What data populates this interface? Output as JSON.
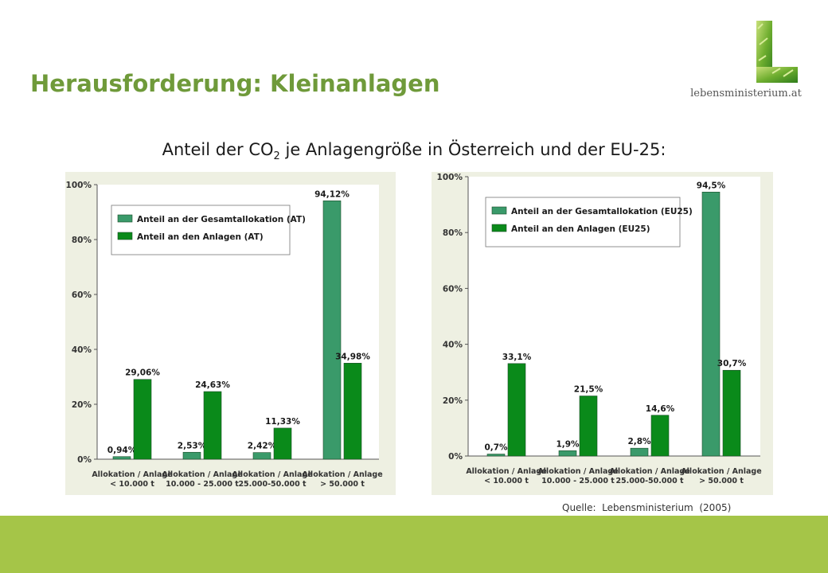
{
  "slide": {
    "title": "Herausforderung: Kleinanlagen",
    "subtitle_part1": "Anteil der CO",
    "subtitle_sub": "2",
    "subtitle_part2": " je Anlagengröße in Österreich und der EU-25:",
    "source": "Quelle:  Lebensministerium  (2005)",
    "logo_text": "lebensministerium.at",
    "colors": {
      "title_green": "#6f9a3a",
      "footer_green": "#a5c548",
      "series_light": "#3a9a6a",
      "series_dark": "#0a8a1a",
      "panel_bg": "#eef0e2"
    }
  },
  "chart_data": [
    {
      "type": "bar",
      "id": "AT",
      "categories": [
        [
          "Allokation / Anlage",
          "< 10.000 t"
        ],
        [
          "Allokation / Anlage",
          "10.000 - 25.000 t"
        ],
        [
          "Allokation / Anlage",
          "25.000-50.000 t"
        ],
        [
          "Allokation / Anlage",
          "> 50.000 t"
        ]
      ],
      "series": [
        {
          "name": "Anteil an der Gesamtallokation (AT)",
          "values": [
            0.94,
            2.53,
            2.42,
            94.12
          ],
          "labels": [
            "0,94%",
            "2,53%",
            "2,42%",
            "94,12%"
          ]
        },
        {
          "name": "Anteil an den Anlagen (AT)",
          "values": [
            29.06,
            24.63,
            11.33,
            34.98
          ],
          "labels": [
            "29,06%",
            "24,63%",
            "11,33%",
            "34,98%"
          ]
        }
      ],
      "yticks": [
        "0%",
        "20%",
        "40%",
        "60%",
        "80%",
        "100%"
      ],
      "ylim": [
        0,
        100
      ],
      "legend_position": "top-left",
      "grid": false
    },
    {
      "type": "bar",
      "id": "EU25",
      "categories": [
        [
          "Allokation / Anlage",
          "< 10.000 t"
        ],
        [
          "Allokation / Anlage",
          "10.000 - 25.000 t"
        ],
        [
          "Allokation / Anlage",
          "25.000-50.000 t"
        ],
        [
          "Allokation / Anlage",
          "> 50.000 t"
        ]
      ],
      "series": [
        {
          "name": "Anteil an der Gesamtallokation (EU25)",
          "values": [
            0.7,
            1.9,
            2.8,
            94.5
          ],
          "labels": [
            "0,7%",
            "1,9%",
            "2,8%",
            "94,5%"
          ]
        },
        {
          "name": "Anteil an den Anlagen (EU25)",
          "values": [
            33.1,
            21.5,
            14.6,
            30.7
          ],
          "labels": [
            "33,1%",
            "21,5%",
            "14,6%",
            "30,7%"
          ]
        }
      ],
      "yticks": [
        "0%",
        "20%",
        "40%",
        "60%",
        "80%",
        "100%"
      ],
      "ylim": [
        0,
        100
      ],
      "legend_position": "top-left",
      "grid": false
    }
  ]
}
